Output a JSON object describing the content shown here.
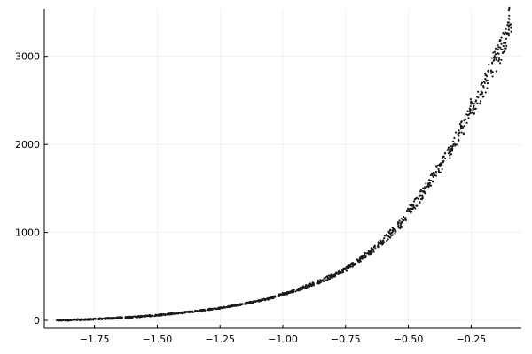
{
  "chart_data": {
    "type": "scatter",
    "title": "",
    "xlabel": "",
    "ylabel": "",
    "xlim": [
      -1.95,
      -0.05
    ],
    "ylim": [
      -90,
      3540
    ],
    "x_ticks": [
      -1.75,
      -1.5,
      -1.25,
      -1.0,
      -0.75,
      -0.5,
      -0.25
    ],
    "x_tick_labels": [
      "−1.75",
      "−1.50",
      "−1.25",
      "−1.00",
      "−0.75",
      "−0.50",
      "−0.25"
    ],
    "y_ticks": [
      0,
      1000,
      2000,
      3000
    ],
    "y_tick_labels": [
      "0",
      "1000",
      "2000",
      "3000"
    ],
    "grid": true,
    "legend": false,
    "marker_color": "#1a1a1a",
    "trend": {
      "description_points": [
        [
          -1.9,
          0
        ],
        [
          -1.75,
          15
        ],
        [
          -1.5,
          60
        ],
        [
          -1.25,
          140
        ],
        [
          -1.0,
          300
        ],
        [
          -0.75,
          590
        ],
        [
          -0.5,
          1240
        ],
        [
          -0.25,
          2460
        ],
        [
          -0.18,
          2880
        ],
        [
          -0.1,
          3260
        ]
      ]
    },
    "series": [
      {
        "values": [
          [
            -1.9,
            0
          ],
          [
            -1.88,
            2
          ],
          [
            -1.86,
            4
          ],
          [
            -1.84,
            5
          ],
          [
            -1.82,
            7
          ],
          [
            -1.8,
            8
          ],
          [
            -1.78,
            10
          ],
          [
            -1.76,
            12
          ],
          [
            -1.74,
            16
          ],
          [
            -1.72,
            18
          ],
          [
            -1.7,
            22
          ],
          [
            -1.68,
            24
          ],
          [
            -1.66,
            28
          ],
          [
            -1.64,
            31
          ],
          [
            -1.62,
            35
          ],
          [
            -1.6,
            38
          ],
          [
            -1.58,
            42
          ],
          [
            -1.56,
            46
          ],
          [
            -1.54,
            50
          ],
          [
            -1.52,
            55
          ],
          [
            -1.5,
            60
          ],
          [
            -1.48,
            65
          ],
          [
            -1.46,
            70
          ],
          [
            -1.44,
            76
          ],
          [
            -1.42,
            82
          ],
          [
            -1.4,
            88
          ],
          [
            -1.38,
            95
          ],
          [
            -1.36,
            100
          ],
          [
            -1.34,
            108
          ],
          [
            -1.32,
            115
          ],
          [
            -1.3,
            122
          ],
          [
            -1.28,
            130
          ],
          [
            -1.26,
            138
          ],
          [
            -1.24,
            146
          ],
          [
            -1.22,
            155
          ],
          [
            -1.2,
            165
          ],
          [
            -1.18,
            175
          ],
          [
            -1.16,
            186
          ],
          [
            -1.14,
            197
          ],
          [
            -1.12,
            208
          ],
          [
            -1.1,
            220
          ],
          [
            -1.08,
            232
          ],
          [
            -1.06,
            245
          ],
          [
            -1.04,
            260
          ],
          [
            -1.02,
            278
          ],
          [
            -1.0,
            300
          ],
          [
            -0.98,
            312
          ],
          [
            -0.96,
            330
          ],
          [
            -0.94,
            350
          ],
          [
            -0.92,
            372
          ],
          [
            -0.9,
            395
          ],
          [
            -0.88,
            415
          ],
          [
            -0.86,
            437
          ],
          [
            -0.84,
            460
          ],
          [
            -0.82,
            482
          ],
          [
            -0.8,
            505
          ],
          [
            -0.78,
            540
          ],
          [
            -0.76,
            570
          ],
          [
            -0.74,
            605
          ],
          [
            -0.72,
            640
          ],
          [
            -0.7,
            680
          ],
          [
            -0.68,
            720
          ],
          [
            -0.66,
            765
          ],
          [
            -0.64,
            810
          ],
          [
            -0.62,
            860
          ],
          [
            -0.6,
            910
          ],
          [
            -0.58,
            960
          ],
          [
            -0.56,
            1015
          ],
          [
            -0.54,
            1075
          ],
          [
            -0.52,
            1135
          ],
          [
            -0.5,
            1240
          ],
          [
            -0.48,
            1300
          ],
          [
            -0.46,
            1380
          ],
          [
            -0.44,
            1460
          ],
          [
            -0.42,
            1545
          ],
          [
            -0.4,
            1630
          ],
          [
            -0.38,
            1720
          ],
          [
            -0.36,
            1810
          ],
          [
            -0.34,
            1900
          ],
          [
            -0.32,
            2000
          ],
          [
            -0.3,
            2100
          ],
          [
            -0.28,
            2200
          ],
          [
            -0.26,
            2300
          ],
          [
            -0.25,
            2460
          ],
          [
            -0.23,
            2500
          ],
          [
            -0.21,
            2600
          ],
          [
            -0.19,
            2720
          ],
          [
            -0.17,
            2840
          ],
          [
            -0.15,
            2960
          ],
          [
            -0.13,
            3080
          ],
          [
            -0.11,
            3200
          ],
          [
            -0.1,
            3260
          ],
          [
            -0.09,
            3330
          ],
          [
            -0.1,
            3430
          ],
          [
            -0.12,
            3150
          ],
          [
            -0.14,
            3030
          ],
          [
            -0.16,
            2950
          ],
          [
            -0.2,
            2650
          ],
          [
            -0.24,
            2420
          ],
          [
            -0.29,
            2180
          ],
          [
            -0.33,
            1950
          ],
          [
            -0.37,
            1760
          ],
          [
            -0.41,
            1590
          ],
          [
            -0.45,
            1420
          ],
          [
            -0.49,
            1270
          ],
          [
            -0.53,
            1100
          ],
          [
            -0.57,
            990
          ],
          [
            -0.61,
            885
          ],
          [
            -0.65,
            790
          ],
          [
            -0.69,
            700
          ],
          [
            -0.73,
            620
          ],
          [
            -0.77,
            555
          ],
          [
            -0.81,
            495
          ],
          [
            -0.85,
            445
          ],
          [
            -0.89,
            405
          ],
          [
            -0.93,
            360
          ],
          [
            -0.97,
            320
          ],
          [
            -1.01,
            290
          ],
          [
            -1.05,
            250
          ],
          [
            -1.09,
            226
          ],
          [
            -1.13,
            203
          ],
          [
            -1.17,
            180
          ],
          [
            -1.21,
            160
          ],
          [
            -1.25,
            142
          ],
          [
            -1.29,
            126
          ],
          [
            -1.33,
            112
          ],
          [
            -1.37,
            98
          ],
          [
            -1.41,
            85
          ],
          [
            -1.45,
            73
          ],
          [
            -1.49,
            62
          ],
          [
            -1.53,
            53
          ],
          [
            -1.57,
            44
          ],
          [
            -1.61,
            36
          ],
          [
            -1.65,
            30
          ],
          [
            -1.69,
            23
          ],
          [
            -1.73,
            17
          ],
          [
            -1.77,
            11
          ],
          [
            -1.81,
            7
          ],
          [
            -1.85,
            4
          ],
          [
            -1.89,
            1
          ]
        ]
      }
    ]
  }
}
